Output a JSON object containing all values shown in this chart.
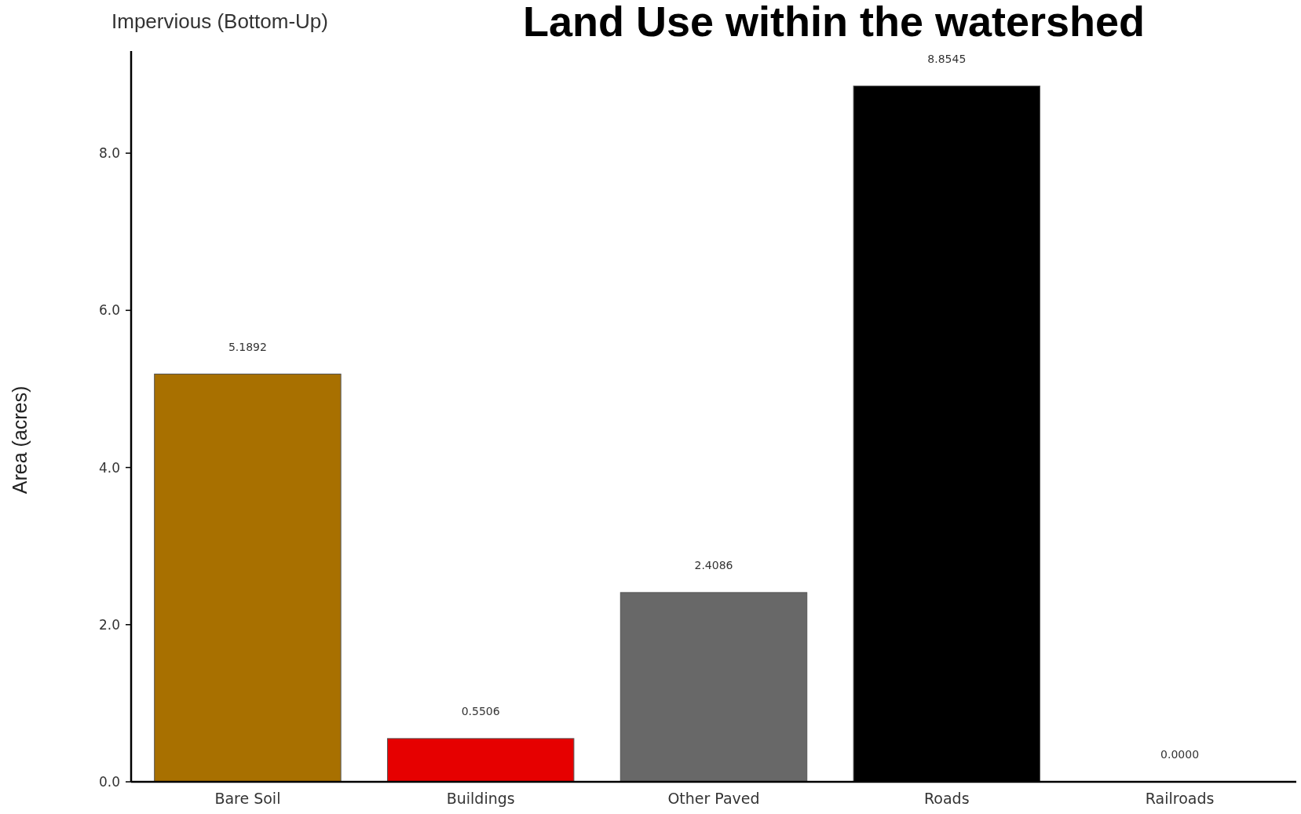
{
  "chart_data": {
    "type": "bar",
    "title": "Land Use within the watershed",
    "subtitle": "Impervious (Bottom-Up)",
    "ylabel": "Area (acres)",
    "categories": [
      "Bare Soil",
      "Buildings",
      "Other Paved",
      "Roads",
      "Railroads"
    ],
    "values": [
      5.1892,
      0.5506,
      2.4086,
      8.8545,
      0
    ],
    "colors": [
      "#a87000",
      "#e60000",
      "#686868",
      "#000000",
      "#9c9c9c"
    ],
    "value_labels": [
      "5.1892",
      "0.5506",
      "2.4086",
      "8.8545",
      "0.0000"
    ],
    "ylim": [
      0,
      9.3
    ],
    "yticks": [
      {
        "value": 0,
        "label": "0.0"
      },
      {
        "value": 2,
        "label": "2.0"
      },
      {
        "value": 4,
        "label": "4.0"
      },
      {
        "value": 6,
        "label": "6.0"
      },
      {
        "value": 8,
        "label": "8.0"
      }
    ],
    "grid": false
  }
}
